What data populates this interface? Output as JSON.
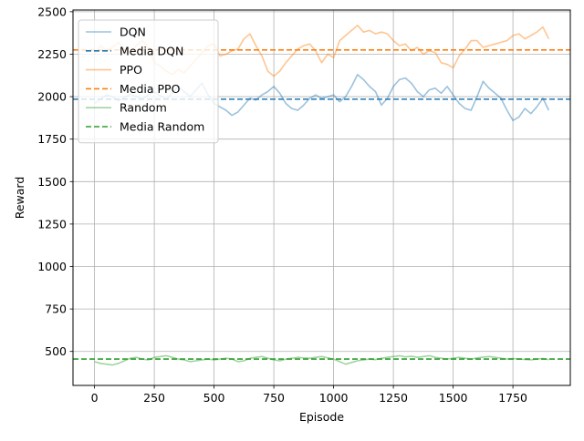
{
  "chart_data": {
    "type": "line",
    "xlabel": "Episode",
    "ylabel": "Reward",
    "xlim": [
      -90,
      1990
    ],
    "ylim": [
      300,
      2510
    ],
    "xticks": [
      0,
      250,
      500,
      750,
      1000,
      1250,
      1500,
      1750
    ],
    "yticks": [
      500,
      750,
      1000,
      1250,
      1500,
      1750,
      2000,
      2250,
      2500
    ],
    "grid": true,
    "legend_position": "upper-left",
    "series": [
      {
        "name": "DQN",
        "color": "#1f77b4",
        "style": "solid",
        "alpha": 0.45,
        "x": [
          0,
          25,
          50,
          75,
          100,
          125,
          150,
          175,
          200,
          225,
          250,
          275,
          300,
          325,
          350,
          375,
          400,
          425,
          450,
          475,
          500,
          525,
          550,
          575,
          600,
          625,
          650,
          675,
          700,
          725,
          750,
          775,
          800,
          825,
          850,
          875,
          900,
          925,
          950,
          975,
          1000,
          1025,
          1050,
          1075,
          1100,
          1125,
          1150,
          1175,
          1200,
          1225,
          1250,
          1275,
          1300,
          1325,
          1350,
          1375,
          1400,
          1425,
          1450,
          1475,
          1500,
          1525,
          1550,
          1575,
          1600,
          1625,
          1650,
          1675,
          1700,
          1725,
          1750,
          1775,
          1800,
          1825,
          1850,
          1875,
          1900
        ],
        "y": [
          1960,
          1985,
          2010,
          2000,
          1975,
          1995,
          2015,
          2000,
          1985,
          2010,
          2030,
          2005,
          1985,
          2020,
          2060,
          2030,
          2000,
          2040,
          2080,
          2010,
          1960,
          1940,
          1920,
          1890,
          1910,
          1950,
          1990,
          1980,
          2010,
          2030,
          2060,
          2020,
          1960,
          1930,
          1920,
          1950,
          1990,
          2010,
          1990,
          2000,
          2010,
          1970,
          2000,
          2060,
          2130,
          2100,
          2060,
          2030,
          1950,
          1990,
          2060,
          2100,
          2110,
          2080,
          2030,
          2000,
          2040,
          2050,
          2020,
          2060,
          2010,
          1960,
          1930,
          1920,
          2000,
          2090,
          2050,
          2020,
          1990,
          1920,
          1860,
          1880,
          1930,
          1900,
          1940,
          1990,
          1920
        ]
      },
      {
        "name": "Media DQN",
        "color": "#1f77b4",
        "style": "dashed",
        "y_constant": 1985
      },
      {
        "name": "PPO",
        "color": "#ff7f0e",
        "style": "solid",
        "alpha": 0.45,
        "x": [
          0,
          25,
          50,
          75,
          100,
          125,
          150,
          175,
          200,
          225,
          250,
          275,
          300,
          325,
          350,
          375,
          400,
          425,
          450,
          475,
          500,
          525,
          550,
          575,
          600,
          625,
          650,
          675,
          700,
          725,
          750,
          775,
          800,
          825,
          850,
          875,
          900,
          925,
          950,
          975,
          1000,
          1025,
          1050,
          1075,
          1100,
          1125,
          1150,
          1175,
          1200,
          1225,
          1250,
          1275,
          1300,
          1325,
          1350,
          1375,
          1400,
          1425,
          1450,
          1475,
          1500,
          1525,
          1550,
          1575,
          1600,
          1625,
          1650,
          1675,
          1700,
          1725,
          1750,
          1775,
          1800,
          1825,
          1850,
          1875,
          1900
        ],
        "y": [
          2250,
          2300,
          2270,
          2290,
          2320,
          2280,
          2260,
          2300,
          2330,
          2290,
          2200,
          2180,
          2150,
          2130,
          2160,
          2140,
          2180,
          2220,
          2260,
          2300,
          2310,
          2240,
          2250,
          2270,
          2280,
          2340,
          2370,
          2300,
          2240,
          2150,
          2120,
          2150,
          2200,
          2240,
          2280,
          2300,
          2310,
          2270,
          2200,
          2250,
          2230,
          2330,
          2360,
          2390,
          2420,
          2380,
          2390,
          2370,
          2380,
          2370,
          2330,
          2300,
          2310,
          2270,
          2290,
          2250,
          2270,
          2260,
          2200,
          2190,
          2170,
          2240,
          2280,
          2330,
          2330,
          2290,
          2300,
          2310,
          2320,
          2330,
          2360,
          2370,
          2340,
          2360,
          2380,
          2410,
          2340
        ]
      },
      {
        "name": "Media PPO",
        "color": "#ff7f0e",
        "style": "dashed",
        "y_constant": 2275
      },
      {
        "name": "Random",
        "color": "#2ca02c",
        "style": "solid",
        "alpha": 0.45,
        "x": [
          0,
          25,
          50,
          75,
          100,
          125,
          150,
          175,
          200,
          225,
          250,
          275,
          300,
          325,
          350,
          375,
          400,
          425,
          450,
          475,
          500,
          525,
          550,
          575,
          600,
          625,
          650,
          675,
          700,
          725,
          750,
          775,
          800,
          825,
          850,
          875,
          900,
          925,
          950,
          975,
          1000,
          1025,
          1050,
          1075,
          1100,
          1125,
          1150,
          1175,
          1200,
          1225,
          1250,
          1275,
          1300,
          1325,
          1350,
          1375,
          1400,
          1425,
          1450,
          1475,
          1500,
          1525,
          1550,
          1575,
          1600,
          1625,
          1650,
          1675,
          1700,
          1725,
          1750,
          1775,
          1800,
          1825,
          1850,
          1875,
          1900
        ],
        "y": [
          440,
          430,
          425,
          420,
          430,
          445,
          460,
          465,
          455,
          450,
          465,
          470,
          475,
          465,
          455,
          450,
          440,
          445,
          450,
          455,
          450,
          455,
          460,
          455,
          440,
          445,
          460,
          465,
          470,
          460,
          450,
          445,
          455,
          460,
          465,
          462,
          460,
          465,
          470,
          463,
          455,
          440,
          425,
          435,
          445,
          450,
          455,
          452,
          460,
          465,
          470,
          475,
          468,
          472,
          465,
          470,
          475,
          465,
          460,
          455,
          460,
          465,
          460,
          455,
          462,
          467,
          470,
          465,
          460,
          455,
          458,
          455,
          453,
          450,
          455,
          458,
          452
        ]
      },
      {
        "name": "Media Random",
        "color": "#2ca02c",
        "style": "dashed",
        "y_constant": 455
      }
    ]
  }
}
